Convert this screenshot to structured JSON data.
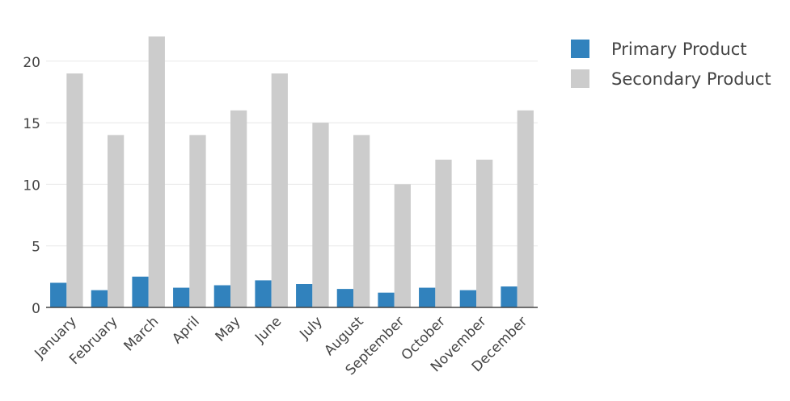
{
  "chart_data": {
    "type": "bar",
    "categories": [
      "January",
      "February",
      "March",
      "April",
      "May",
      "June",
      "July",
      "August",
      "September",
      "October",
      "November",
      "December"
    ],
    "series": [
      {
        "name": "Primary Product",
        "color": "#3182bd",
        "values": [
          2,
          1.4,
          2.5,
          1.6,
          1.8,
          2.2,
          1.9,
          1.5,
          1.2,
          1.6,
          1.4,
          1.7
        ]
      },
      {
        "name": "Secondary Product",
        "color": "#cccccc",
        "values": [
          19,
          14,
          22,
          14,
          16,
          19,
          15,
          14,
          10,
          12,
          12,
          16
        ]
      }
    ],
    "title": "",
    "xlabel": "",
    "ylabel": "",
    "ylim": [
      0,
      23
    ],
    "yticks": [
      0,
      5,
      10,
      15,
      20
    ],
    "grid": true,
    "legend_position": "top-right"
  }
}
